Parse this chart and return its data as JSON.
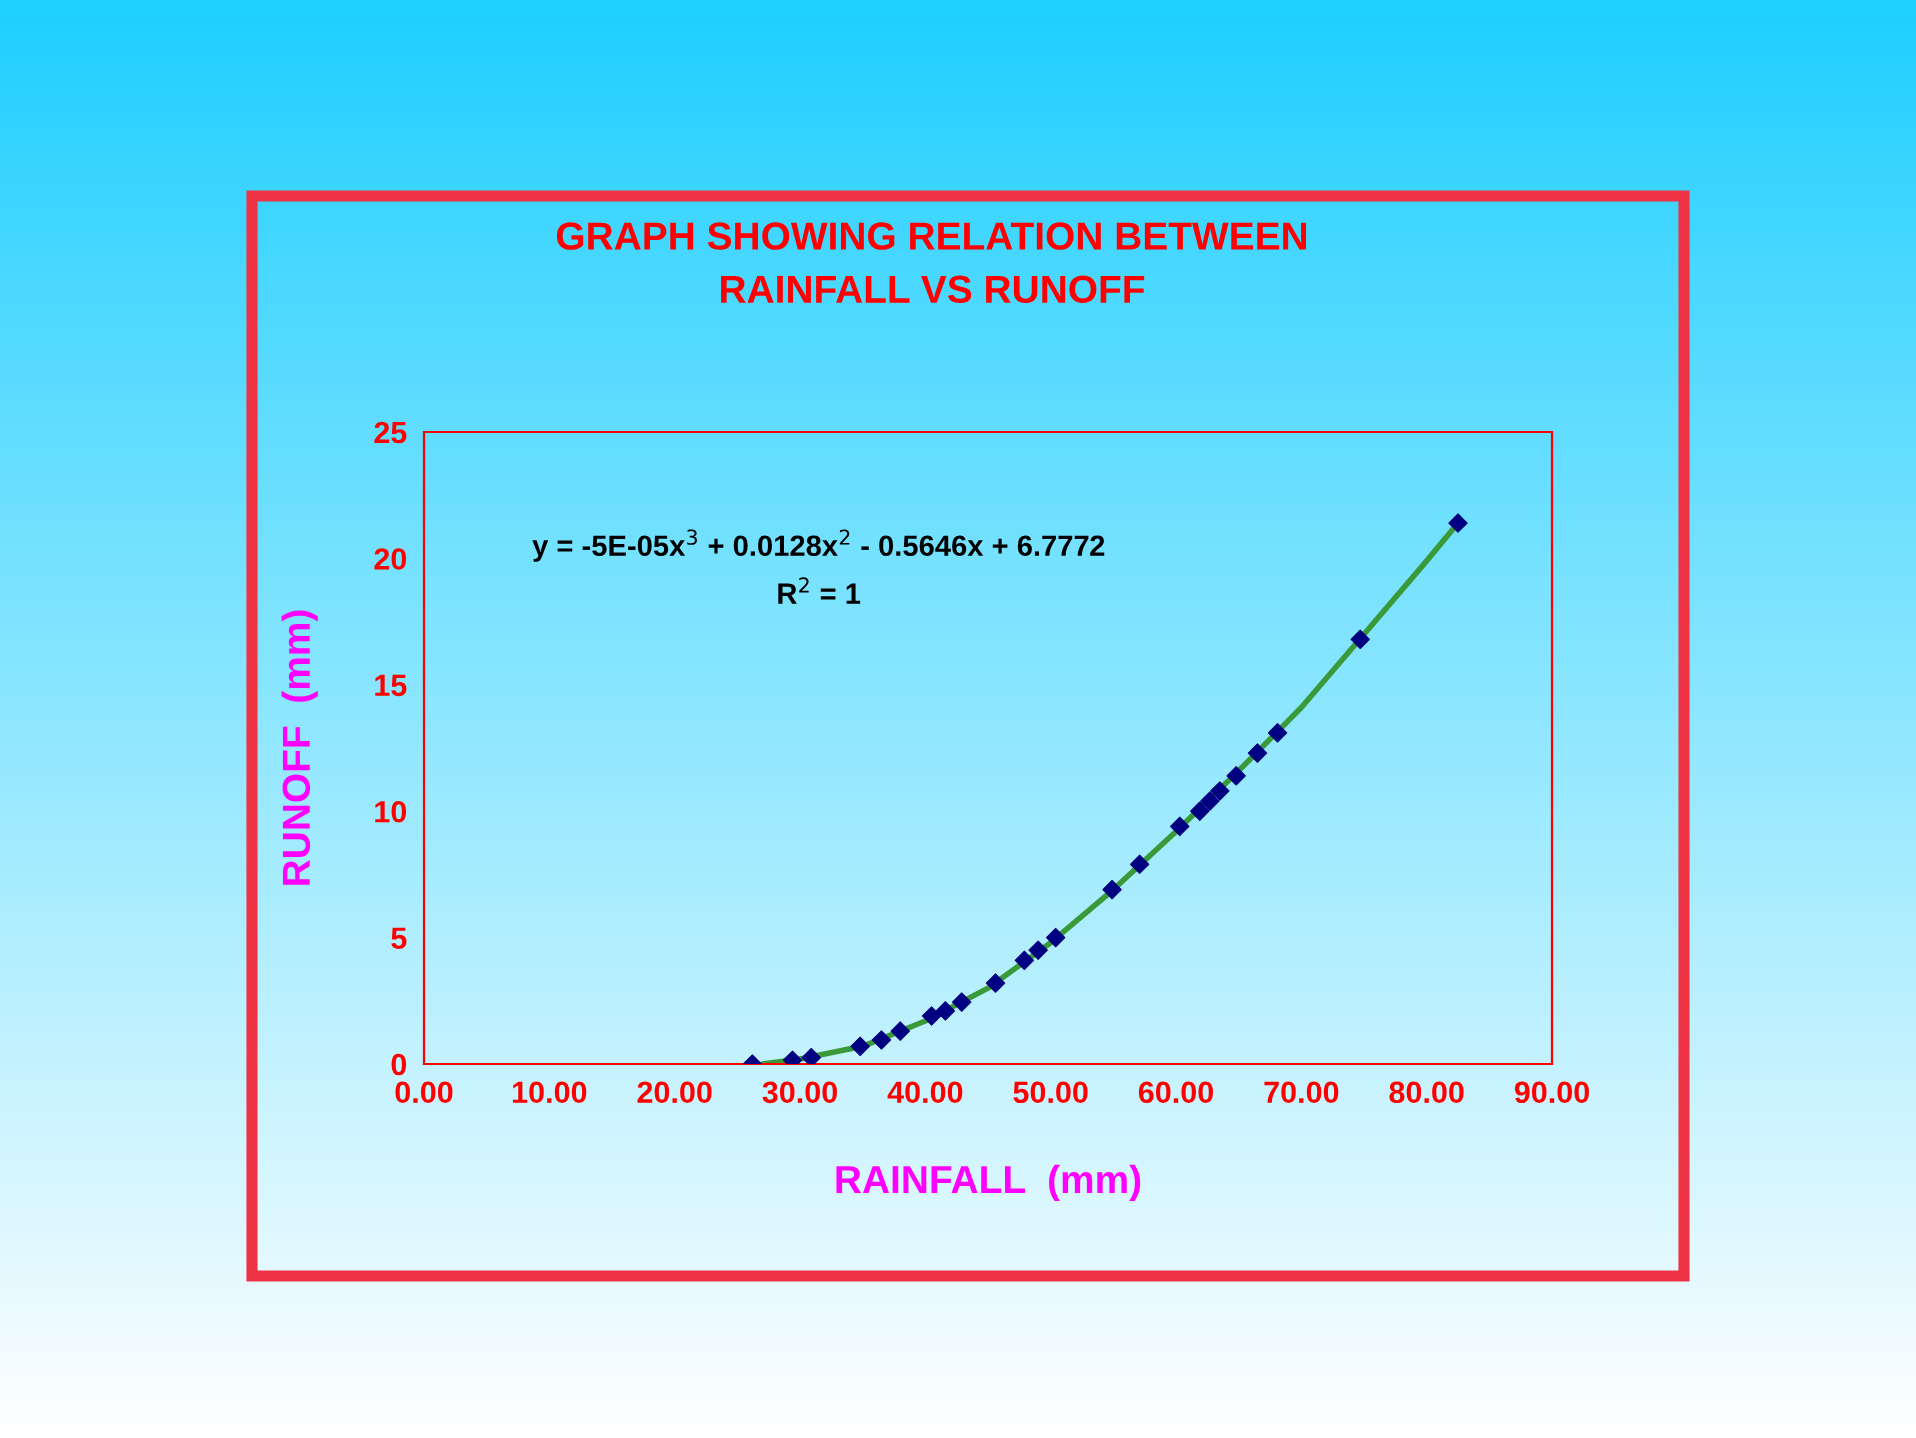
{
  "chart_data": {
    "type": "scatter",
    "title": "GRAPH SHOWING RELATION BETWEEN\nRAINFALL VS RUNOFF",
    "xlabel": "RAINFALL  (mm)",
    "ylabel": "RUNOFF  (mm)",
    "annotations": [
      "y = -5E-05x$^{3}$ + 0.0128x$^{2}$ - 0.5646x + 6.7772",
      "R$^{2}$ = 1"
    ],
    "xlim": [
      0,
      90
    ],
    "ylim": [
      0,
      25
    ],
    "xticks": [
      {
        "value": 0,
        "label": "0.00"
      },
      {
        "value": 10,
        "label": "10.00"
      },
      {
        "value": 20,
        "label": "20.00"
      },
      {
        "value": 30,
        "label": "30.00"
      },
      {
        "value": 40,
        "label": "40.00"
      },
      {
        "value": 50,
        "label": "50.00"
      },
      {
        "value": 60,
        "label": "60.00"
      },
      {
        "value": 70,
        "label": "70.00"
      },
      {
        "value": 80,
        "label": "80.00"
      },
      {
        "value": 90,
        "label": "90.00"
      }
    ],
    "yticks": [
      0,
      5,
      10,
      15,
      20,
      25
    ],
    "grid": false,
    "legend": false,
    "series": [
      {
        "type": "line",
        "color": "#3a9a3a",
        "marker": "none",
        "line_style": "solid",
        "x": [
          27,
          30,
          35,
          40,
          45,
          50,
          55,
          60,
          65,
          70,
          75,
          80,
          82.5
        ],
        "values": [
          0,
          0.2,
          0.7,
          1.7,
          3.0,
          4.8,
          6.9,
          9.2,
          11.6,
          14.1,
          17.0,
          19.9,
          21.4
        ]
      },
      {
        "color": "#000080",
        "marker": "diamond",
        "x": [
          26.2,
          29.4,
          30.9,
          34.8,
          36.5,
          38,
          40.5,
          41.6,
          42.9,
          45.6,
          47.9,
          49,
          50.4,
          54.9,
          57.1,
          60.3,
          61.9,
          62.7,
          63.5,
          64.8,
          66.5,
          68.1,
          74.7,
          82.5
        ],
        "values": [
          0,
          0.15,
          0.25,
          0.7,
          0.95,
          1.3,
          1.9,
          2.1,
          2.45,
          3.2,
          4.1,
          4.5,
          5,
          6.9,
          7.9,
          9.4,
          10,
          10.4,
          10.8,
          11.4,
          12.3,
          13.1,
          16.8,
          21.4
        ]
      }
    ]
  }
}
